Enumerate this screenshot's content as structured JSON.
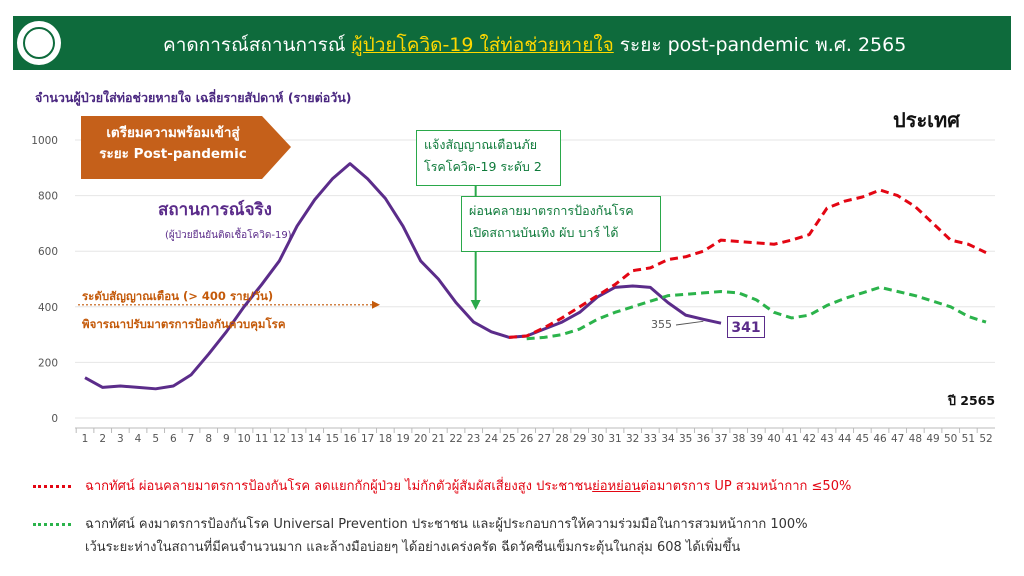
{
  "header": {
    "title_pre": "คาดการณ์สถานการณ์ ",
    "title_highlight": "ผู้ป่วยโควิด-19 ใส่ท่อช่วยหายใจ",
    "title_post": " ระยะ post-pandemic พ.ศ. 2565",
    "logo_icon": "ministry-seal-icon"
  },
  "chart_data": {
    "type": "line",
    "ylabel": "จำนวนผู้ป่วยใส่ท่อช่วยหายใจ เฉลี่ยรายสัปดาห์ (รายต่อวัน)",
    "region_label": "ประเทศ",
    "xlabel": "ปี 2565",
    "ylim": [
      0,
      1000
    ],
    "yticks": [
      0,
      200,
      400,
      600,
      800,
      1000
    ],
    "xlim": [
      1,
      52
    ],
    "x": [
      1,
      2,
      3,
      4,
      5,
      6,
      7,
      8,
      9,
      10,
      11,
      12,
      13,
      14,
      15,
      16,
      17,
      18,
      19,
      20,
      21,
      22,
      23,
      24,
      25,
      26,
      27,
      28,
      29,
      30,
      31,
      32,
      33,
      34,
      35,
      36,
      37,
      38,
      39,
      40,
      41,
      42,
      43,
      44,
      45,
      46,
      47,
      48,
      49,
      50,
      51,
      52
    ],
    "series": [
      {
        "name": "สถานการณ์จริง",
        "color": "#5b2c8a",
        "style": "solid",
        "points": [
          [
            1,
            145
          ],
          [
            2,
            110
          ],
          [
            3,
            115
          ],
          [
            4,
            110
          ],
          [
            5,
            105
          ],
          [
            6,
            115
          ],
          [
            7,
            155
          ],
          [
            8,
            230
          ],
          [
            9,
            310
          ],
          [
            10,
            400
          ],
          [
            11,
            480
          ],
          [
            12,
            565
          ],
          [
            13,
            690
          ],
          [
            14,
            785
          ],
          [
            15,
            860
          ],
          [
            16,
            915
          ],
          [
            17,
            860
          ],
          [
            18,
            790
          ],
          [
            19,
            690
          ],
          [
            20,
            565
          ],
          [
            21,
            500
          ],
          [
            22,
            415
          ],
          [
            23,
            345
          ],
          [
            24,
            310
          ],
          [
            25,
            290
          ],
          [
            26,
            295
          ],
          [
            27,
            320
          ],
          [
            28,
            345
          ],
          [
            29,
            380
          ],
          [
            30,
            435
          ],
          [
            31,
            470
          ],
          [
            32,
            475
          ],
          [
            33,
            470
          ],
          [
            34,
            415
          ],
          [
            35,
            370
          ],
          [
            36,
            355
          ],
          [
            37,
            341
          ]
        ]
      },
      {
        "name": "ฉากทัศน์ ผ่อนคลายมาตรการ",
        "color": "#e30613",
        "style": "dashed",
        "points": [
          [
            25,
            290
          ],
          [
            26,
            295
          ],
          [
            27,
            325
          ],
          [
            28,
            360
          ],
          [
            29,
            400
          ],
          [
            30,
            440
          ],
          [
            31,
            480
          ],
          [
            32,
            530
          ],
          [
            33,
            540
          ],
          [
            34,
            570
          ],
          [
            35,
            580
          ],
          [
            36,
            600
          ],
          [
            37,
            640
          ],
          [
            38,
            635
          ],
          [
            39,
            630
          ],
          [
            40,
            625
          ],
          [
            41,
            640
          ],
          [
            42,
            660
          ],
          [
            43,
            755
          ],
          [
            44,
            780
          ],
          [
            45,
            795
          ],
          [
            46,
            820
          ],
          [
            47,
            800
          ],
          [
            48,
            760
          ],
          [
            49,
            700
          ],
          [
            50,
            640
          ],
          [
            51,
            625
          ],
          [
            52,
            595
          ]
        ]
      },
      {
        "name": "ฉากทัศน์ คงมาตรการ",
        "color": "#2bb34b",
        "style": "dashed",
        "points": [
          [
            26,
            285
          ],
          [
            27,
            290
          ],
          [
            28,
            300
          ],
          [
            29,
            320
          ],
          [
            30,
            355
          ],
          [
            31,
            380
          ],
          [
            32,
            400
          ],
          [
            33,
            420
          ],
          [
            34,
            440
          ],
          [
            35,
            445
          ],
          [
            36,
            450
          ],
          [
            37,
            455
          ],
          [
            38,
            450
          ],
          [
            39,
            425
          ],
          [
            40,
            380
          ],
          [
            41,
            360
          ],
          [
            42,
            370
          ],
          [
            43,
            405
          ],
          [
            44,
            430
          ],
          [
            45,
            450
          ],
          [
            46,
            470
          ],
          [
            47,
            455
          ],
          [
            48,
            440
          ],
          [
            49,
            420
          ],
          [
            50,
            400
          ],
          [
            51,
            365
          ],
          [
            52,
            345
          ]
        ]
      }
    ],
    "alert_level": 400,
    "annotations": {
      "arrow_box_line1": "เตรียมความพร้อมเข้าสู่",
      "arrow_box_line2": "ระยะ Post-pandemic",
      "actual_label": "สถานการณ์จริง",
      "actual_sub": "(ผู้ป่วยยืนยันติดเชื้อโควิด-19)",
      "alert_line1": "ระดับสัญญาณเตือน (> 400 ราย/วัน)",
      "alert_line2": "พิจารณาปรับมาตรการป้องกันควบคุมโรค",
      "box1_line1": "แจ้งสัญญาณเตือนภัย",
      "box1_line2": "โรคโควิด-19 ระดับ 2",
      "box1_week": 23,
      "box2_line1": "ผ่อนคลายมาตรการป้องกันโรค",
      "box2_line2": "เปิดสถานบันเทิง ผับ บาร์ ได้",
      "value_355": "355",
      "value_341": "341"
    }
  },
  "legend": {
    "red_pre": "ฉากทัศน์ ผ่อนคลายมาตรการป้องกันโรค ลดแยกกักผู้ป่วย ไม่กักตัวผู้สัมผัสเสี่ยงสูง ประชาชน",
    "red_underline": "ย่อหย่อน",
    "red_post": "ต่อมาตรการ UP สวมหน้ากาก ≤50%",
    "green_line1": "ฉากทัศน์ คงมาตรการป้องกันโรค Universal Prevention ประชาชน และผู้ประกอบการให้ความร่วมมือในการสวมหน้ากาก 100%",
    "green_line2": "เว้นระยะห่างในสถานที่มีคนจำนวนมาก และล้างมือบ่อยๆ ได้อย่างเคร่งครัด ฉีดวัคซีนเข็มกระตุ้นในกลุ่ม 608 ได้เพิ่มขึ้น"
  }
}
